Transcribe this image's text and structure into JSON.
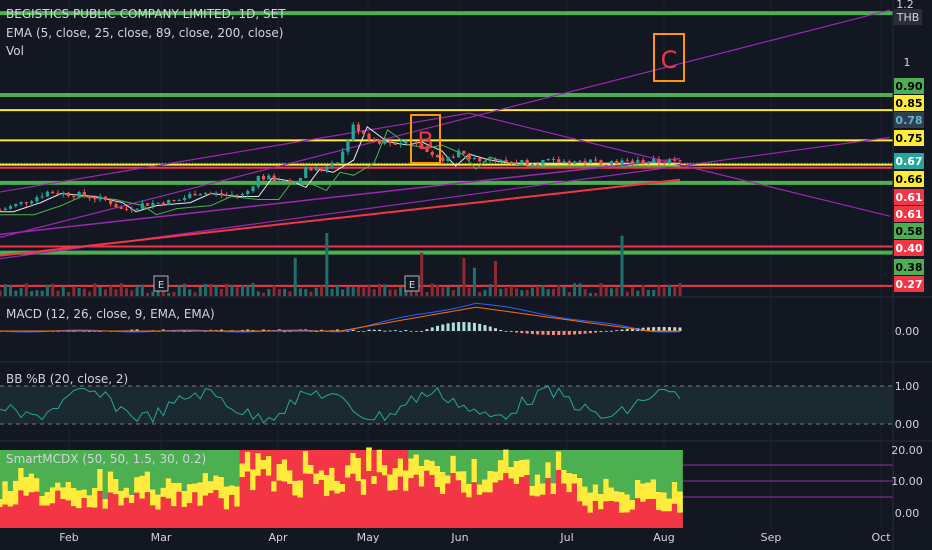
{
  "header": {
    "symbol_line": "BEGISTICS PUBLIC COMPANY LIMITED, 1D, SET",
    "ema_line": "EMA (5, close, 25, close, 89, close, 200, close)",
    "vol_label": "Vol",
    "currency": "THB"
  },
  "annotations": {
    "b": "B",
    "c": "C",
    "earnings_marker": "E"
  },
  "panes": {
    "macd": {
      "label": "MACD (12, 26, close, 9, EMA, EMA)"
    },
    "bb": {
      "label": "BB %B (20, close, 2)"
    },
    "smart": {
      "label": "SmartMCDX (50, 50, 1.5, 30, 0.2)"
    }
  },
  "colors": {
    "background": "#131722",
    "green_level": "#4caf50",
    "yellow_level": "#ffeb3b",
    "red_level": "#f23645",
    "trend_purple": "#9c27b0",
    "annotation_orange": "#ff9800",
    "candle_up": "#26a69a",
    "candle_down": "#ef5350"
  },
  "chart_data": [
    {
      "type": "candlestick",
      "title": "BEGISTICS PUBLIC COMPANY LIMITED, 1D, SET",
      "y_unit": "THB",
      "x_ticks": [
        "Feb",
        "Mar",
        "Apr",
        "May",
        "Jun",
        "Jul",
        "Aug",
        "Sep",
        "Oct"
      ],
      "y_ticks": [
        1.2,
        1.0
      ],
      "price_path": [
        [
          0,
          0.52
        ],
        [
          0.04,
          0.55
        ],
        [
          0.07,
          0.58
        ],
        [
          0.12,
          0.57
        ],
        [
          0.16,
          0.55
        ],
        [
          0.18,
          0.52
        ],
        [
          0.21,
          0.54
        ],
        [
          0.26,
          0.55
        ],
        [
          0.29,
          0.58
        ],
        [
          0.33,
          0.57
        ],
        [
          0.36,
          0.57
        ],
        [
          0.38,
          0.63
        ],
        [
          0.41,
          0.62
        ],
        [
          0.43,
          0.6
        ],
        [
          0.45,
          0.66
        ],
        [
          0.47,
          0.65
        ],
        [
          0.5,
          0.69
        ],
        [
          0.52,
          0.8
        ],
        [
          0.55,
          0.75
        ],
        [
          0.58,
          0.74
        ],
        [
          0.6,
          0.75
        ],
        [
          0.63,
          0.72
        ],
        [
          0.65,
          0.67
        ],
        [
          0.67,
          0.71
        ],
        [
          0.7,
          0.69
        ],
        [
          0.73,
          0.68
        ]
      ],
      "levels": [
        {
          "value": 1.17,
          "color": "green"
        },
        {
          "value": 0.9,
          "color": "green"
        },
        {
          "value": 0.85,
          "color": "yellow"
        },
        {
          "value": 0.75,
          "color": "yellow"
        },
        {
          "value": 0.67,
          "color": "yellow"
        },
        {
          "value": 0.66,
          "color": "red"
        },
        {
          "value": 0.61,
          "color": "green"
        },
        {
          "value": 0.4,
          "color": "red"
        },
        {
          "value": 0.38,
          "color": "green"
        },
        {
          "value": 0.27,
          "color": "red"
        }
      ],
      "price_labels": [
        {
          "text": "0.90",
          "bg": "#4caf50",
          "fg": "#000000"
        },
        {
          "text": "0.85",
          "bg": "#ffeb3b",
          "fg": "#000000"
        },
        {
          "text": "0.78",
          "bg": "#2f3f52",
          "fg": "#5fb8c6"
        },
        {
          "text": "0.75",
          "bg": "#ffeb3b",
          "fg": "#000000"
        },
        {
          "text": "0.67",
          "bg": "#26a69a",
          "fg": "#ffffff"
        },
        {
          "text": "0.66",
          "bg": "#ffeb3b",
          "fg": "#000000"
        },
        {
          "text": "0.61",
          "bg": "#f23645",
          "fg": "#ffffff"
        },
        {
          "text": "0.61",
          "bg": "#f23645",
          "fg": "#ffffff"
        },
        {
          "text": "0.58",
          "bg": "#4caf50",
          "fg": "#000000"
        },
        {
          "text": "0.40",
          "bg": "#f23645",
          "fg": "#ffffff"
        },
        {
          "text": "0.38",
          "bg": "#4caf50",
          "fg": "#000000"
        },
        {
          "text": "0.27",
          "bg": "#f23645",
          "fg": "#ffffff"
        }
      ]
    },
    {
      "type": "line",
      "title": "MACD (12, 26, close, 9, EMA, EMA)",
      "y_ticks": [
        "0.00"
      ]
    },
    {
      "type": "line",
      "title": "BB %B (20, close, 2)",
      "y_ticks": [
        "1.00",
        "0.00"
      ],
      "bands": [
        1.0,
        0.0
      ]
    },
    {
      "type": "area",
      "title": "SmartMCDX (50, 50, 1.5, 30, 0.2)",
      "y_ticks": [
        "20.00",
        "10.00",
        "0.00"
      ]
    }
  ]
}
